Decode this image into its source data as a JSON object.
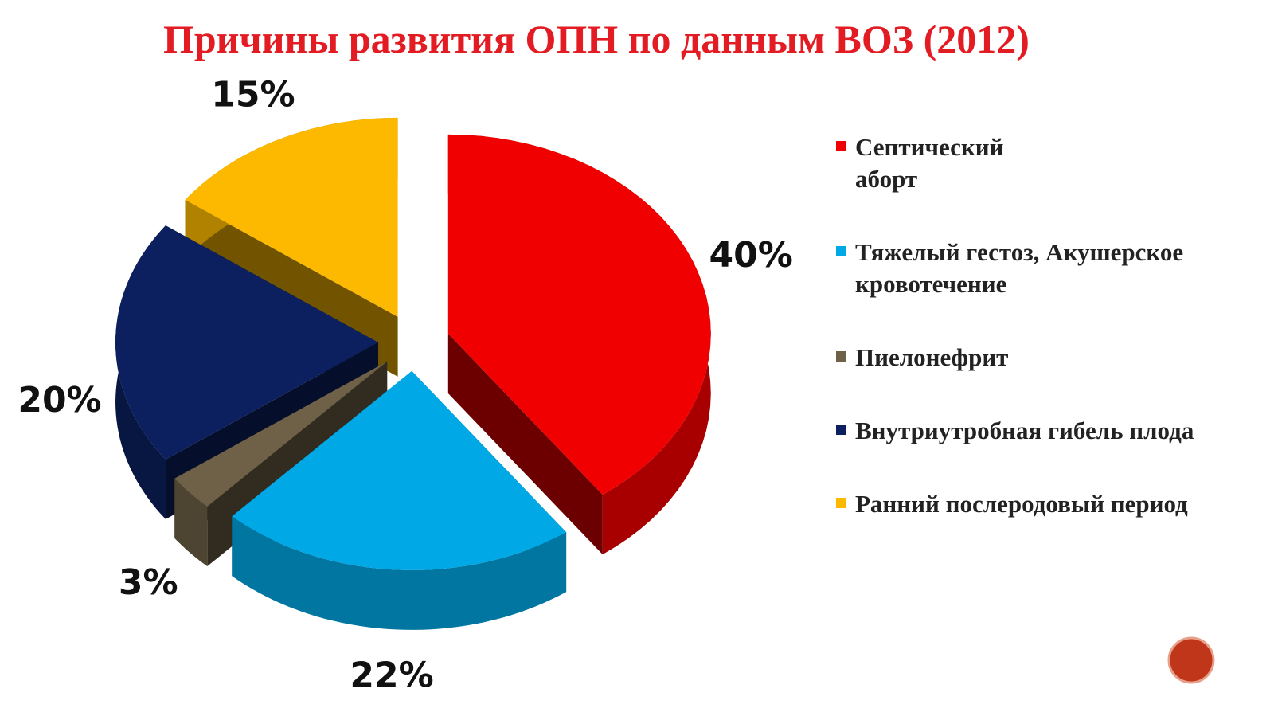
{
  "chart_data": {
    "type": "pie",
    "title": "Причины развития ОПН по данным ВОЗ (2012)",
    "categories": [
      "Септический аборт",
      "Тяжелый гестоз, Акушерское кровотечение",
      "Пиелонефрит",
      "Внутриутробная гибель плода",
      "Ранний послеродовый период"
    ],
    "values": [
      40,
      22,
      3,
      20,
      15
    ],
    "value_labels": [
      "40%",
      "22%",
      "3%",
      "20%",
      "15%"
    ],
    "colors": [
      "#f00000",
      "#00a8e6",
      "#6e6148",
      "#0c1f5e",
      "#fcb900"
    ]
  }
}
